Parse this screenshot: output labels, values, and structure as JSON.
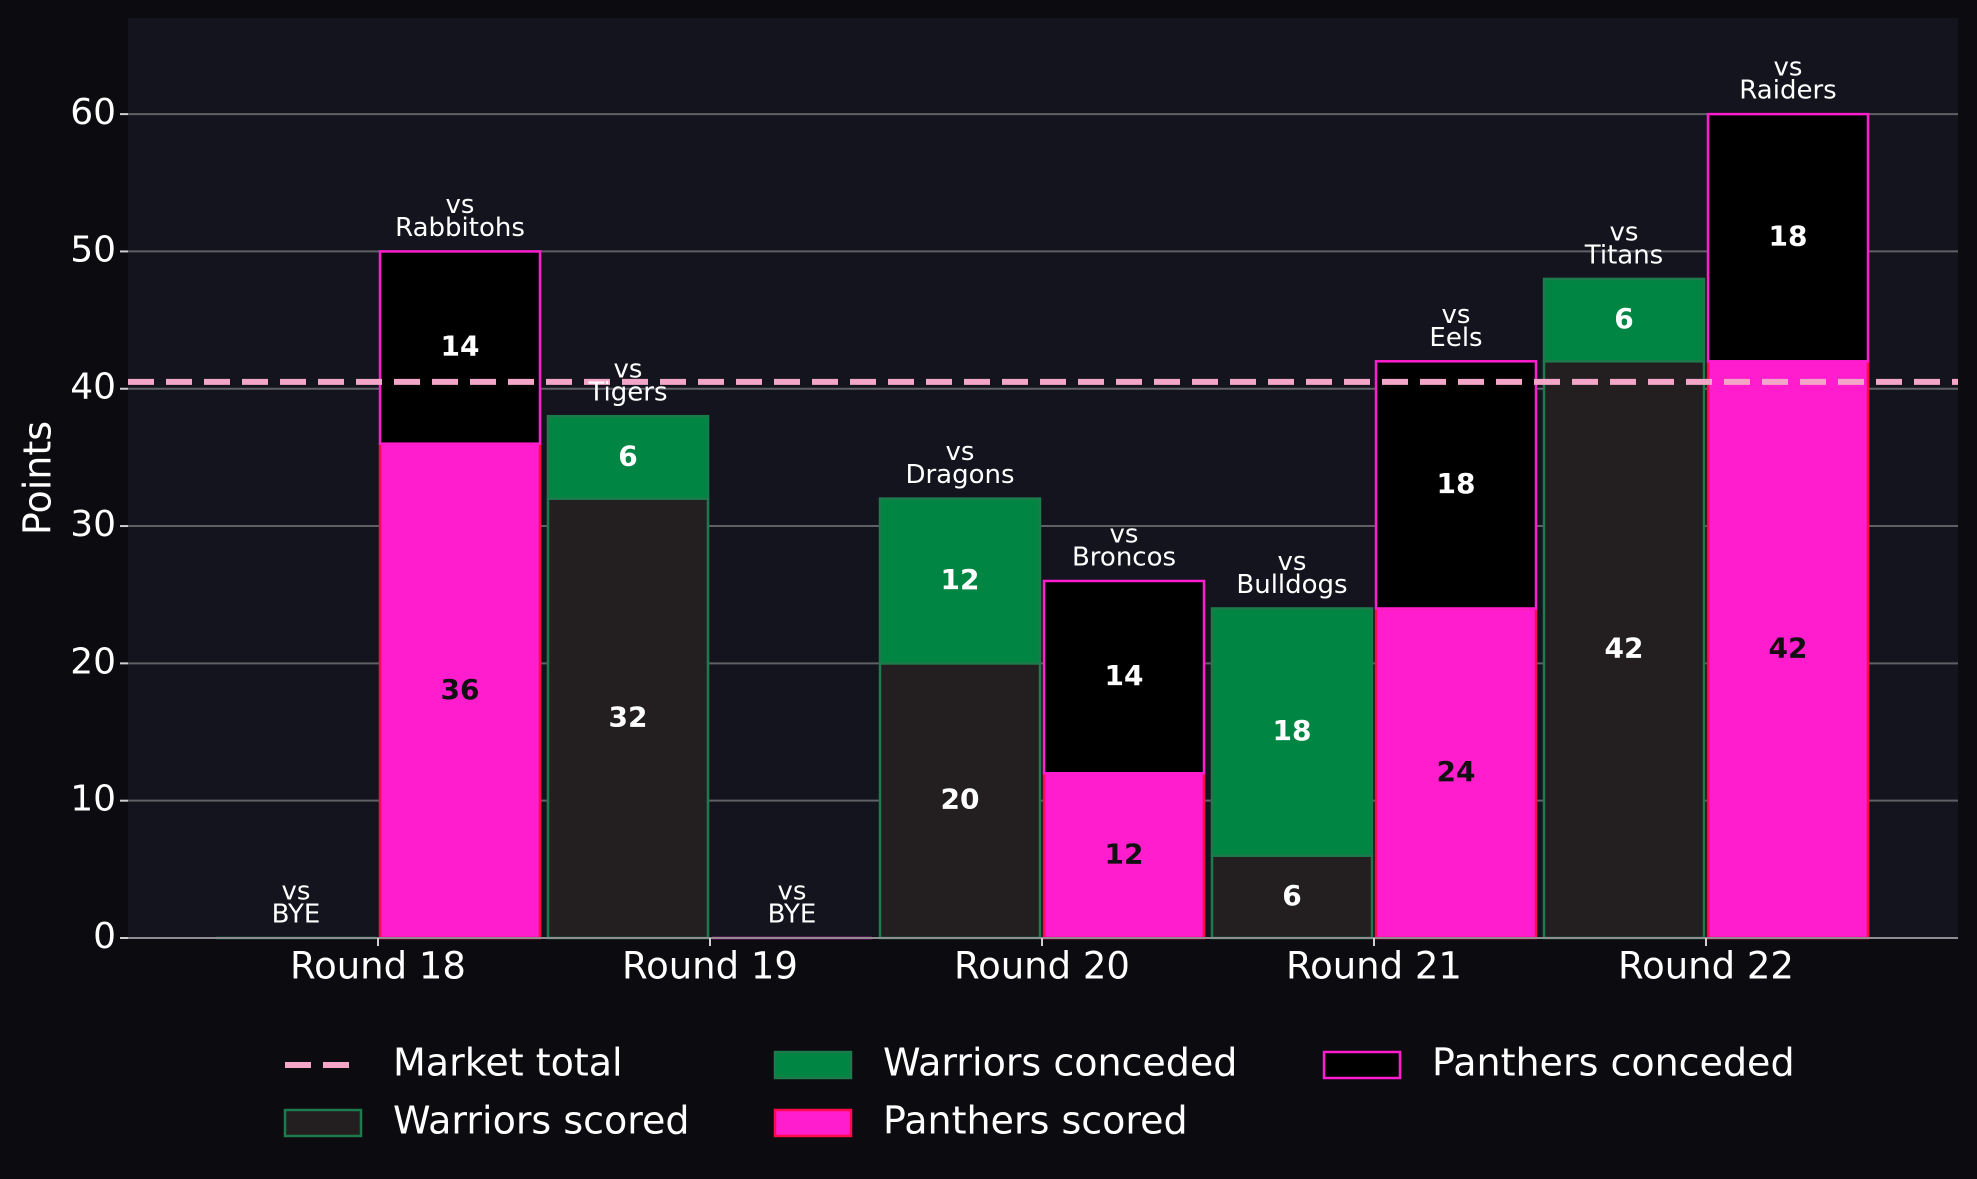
{
  "chart_data": {
    "type": "bar",
    "ylabel": "Points",
    "ylim": [
      0,
      67
    ],
    "yticks": [
      0,
      10,
      20,
      30,
      40,
      50,
      60
    ],
    "grid": true,
    "categories": [
      "Round 18",
      "Round 19",
      "Round 20",
      "Round 21",
      "Round 22"
    ],
    "reference_line": {
      "name": "Market total",
      "value": 40.5,
      "color": "#f4a6c8"
    },
    "teams": [
      {
        "scored_name": "Warriors scored",
        "conceded_name": "Warriors conceded",
        "scored_color": "#231f20",
        "conceded_color": "#008542",
        "edge_color": "#1d7a4c",
        "opponents": [
          "BYE",
          "Tigers",
          "Dragons",
          "Bulldogs",
          "Titans"
        ],
        "scored": [
          0,
          32,
          20,
          6,
          42
        ],
        "conceded": [
          0,
          6,
          12,
          18,
          6
        ]
      },
      {
        "scored_name": "Panthers scored",
        "conceded_name": "Panthers conceded",
        "scored_color": "#ff1dce",
        "conceded_color": "#000000",
        "edge_color": "#ff1dce",
        "opponents": [
          "Rabbitohs",
          "BYE",
          "Broncos",
          "Eels",
          "Raiders"
        ],
        "scored": [
          36,
          0,
          12,
          24,
          42
        ],
        "conceded": [
          14,
          0,
          14,
          18,
          18
        ]
      }
    ],
    "vs_prefix": "vs",
    "legend": {
      "placement": "bottom",
      "entries": [
        "Market total",
        "Warriors scored",
        "Warriors conceded",
        "Panthers scored",
        "Panthers conceded"
      ]
    }
  }
}
